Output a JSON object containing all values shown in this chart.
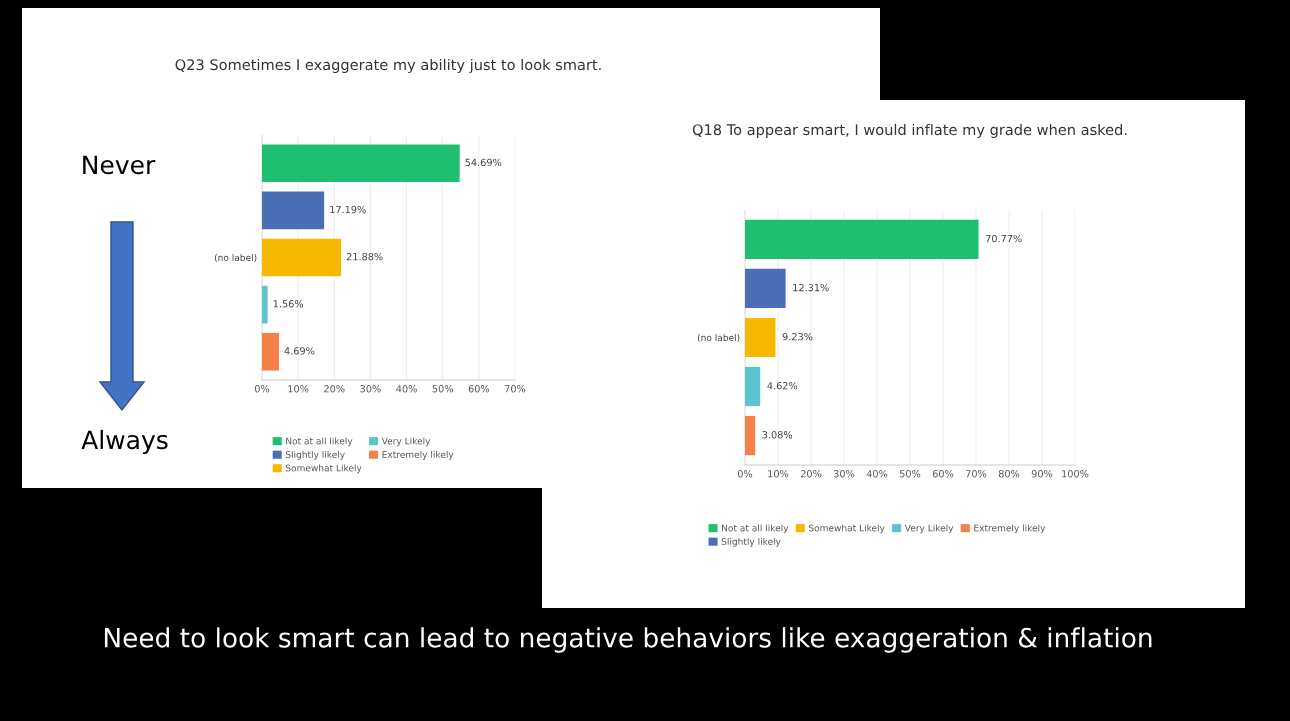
{
  "chart_data": [
    {
      "type": "bar",
      "orientation": "horizontal",
      "title": "Q23 Sometimes I exaggerate my ability just to look smart.",
      "categories": [
        null,
        null,
        "(no label)",
        null,
        null
      ],
      "series": [
        {
          "name": "Not at all likely",
          "color": "#1fbf72",
          "values": [
            54.69,
            null,
            null,
            null,
            null
          ],
          "value_labels": [
            "54.69%",
            null,
            null,
            null,
            null
          ]
        },
        {
          "name": "Slightly likely",
          "color": "#4a6fb5",
          "values": [
            null,
            17.19,
            null,
            null,
            null
          ],
          "value_labels": [
            null,
            "17.19%",
            null,
            null,
            null
          ]
        },
        {
          "name": "Somewhat Likely",
          "color": "#f6b900",
          "values": [
            null,
            null,
            21.88,
            null,
            null
          ],
          "value_labels": [
            null,
            null,
            "21.88%",
            null,
            null
          ]
        },
        {
          "name": "Very Likely",
          "color": "#5bc4cf",
          "values": [
            null,
            null,
            null,
            1.56,
            null
          ],
          "value_labels": [
            null,
            null,
            null,
            "1.56%",
            null
          ]
        },
        {
          "name": "Extremely likely",
          "color": "#f4804a",
          "values": [
            null,
            null,
            null,
            null,
            4.69
          ],
          "value_labels": [
            null,
            null,
            null,
            null,
            "4.69%"
          ]
        }
      ],
      "xlim": [
        0,
        70
      ],
      "xticks": [
        {
          "value": 0,
          "label": "0%"
        },
        {
          "value": 10,
          "label": "10%"
        },
        {
          "value": 20,
          "label": "20%"
        },
        {
          "value": 30,
          "label": "30%"
        },
        {
          "value": 40,
          "label": "40%"
        },
        {
          "value": 50,
          "label": "50%"
        },
        {
          "value": 60,
          "label": "60%"
        },
        {
          "value": 70,
          "label": "70%"
        }
      ],
      "grid": "x",
      "legend": "bottom",
      "annotations": [
        "Never",
        "Always"
      ]
    },
    {
      "type": "bar",
      "orientation": "horizontal",
      "title": "Q18 To appear smart, I would inflate my grade when asked.",
      "categories": [
        null,
        null,
        "(no label)",
        null,
        null
      ],
      "series": [
        {
          "name": "Not at all likely",
          "color": "#1fbf72",
          "values": [
            70.77,
            null,
            null,
            null,
            null
          ],
          "value_labels": [
            "70.77%",
            null,
            null,
            null,
            null
          ]
        },
        {
          "name": "Slightly likely",
          "color": "#4a6fb5",
          "values": [
            null,
            12.31,
            null,
            null,
            null
          ],
          "value_labels": [
            null,
            "12.31%",
            null,
            null,
            null
          ]
        },
        {
          "name": "Somewhat Likely",
          "color": "#f6b900",
          "values": [
            null,
            null,
            9.23,
            null,
            null
          ],
          "value_labels": [
            null,
            null,
            "9.23%",
            null,
            null
          ]
        },
        {
          "name": "Very Likely",
          "color": "#5bc4cf",
          "values": [
            null,
            null,
            null,
            4.62,
            null
          ],
          "value_labels": [
            null,
            null,
            null,
            "4.62%",
            null
          ]
        },
        {
          "name": "Extremely likely",
          "color": "#f4804a",
          "values": [
            null,
            null,
            null,
            null,
            3.08
          ],
          "value_labels": [
            null,
            null,
            null,
            null,
            "3.08%"
          ]
        }
      ],
      "xlim": [
        0,
        100
      ],
      "xticks": [
        {
          "value": 0,
          "label": "0%"
        },
        {
          "value": 10,
          "label": "10%"
        },
        {
          "value": 20,
          "label": "20%"
        },
        {
          "value": 30,
          "label": "30%"
        },
        {
          "value": 40,
          "label": "40%"
        },
        {
          "value": 50,
          "label": "50%"
        },
        {
          "value": 60,
          "label": "60%"
        },
        {
          "value": 70,
          "label": "70%"
        },
        {
          "value": 80,
          "label": "80%"
        },
        {
          "value": 90,
          "label": "90%"
        },
        {
          "value": 100,
          "label": "100%"
        }
      ],
      "grid": "x",
      "legend": "bottom",
      "annotations": [
        "Need to look smart can lead to negative behaviors like exaggeration & inflation"
      ]
    }
  ]
}
